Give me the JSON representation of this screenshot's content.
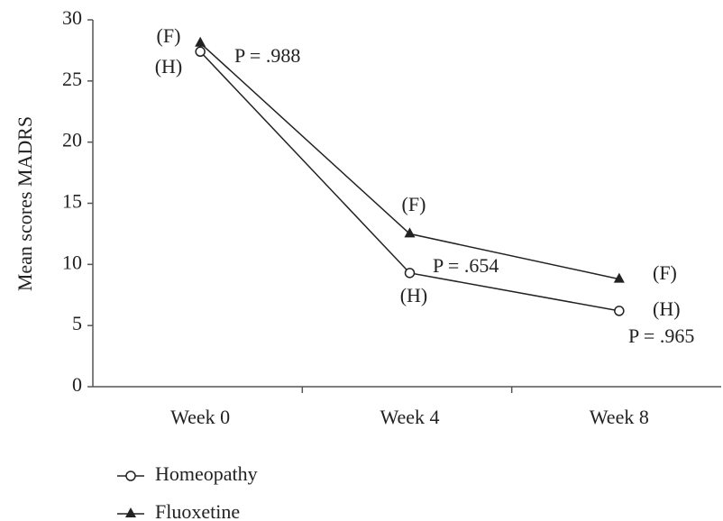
{
  "chart_data": {
    "type": "line",
    "y_label": "Mean scores MADRS",
    "categories": [
      "Week 0",
      "Week 4",
      "Week 8"
    ],
    "series": [
      {
        "name": "Homeopathy",
        "color": "#222222",
        "marker": "open-circle",
        "values": [
          27.4,
          9.3,
          6.2
        ]
      },
      {
        "name": "Fluoxetine",
        "color": "#222222",
        "marker": "filled-triangle",
        "values": [
          28.1,
          12.5,
          8.8
        ]
      }
    ],
    "ylim": [
      0,
      30
    ],
    "yticks": [
      0,
      5,
      10,
      15,
      20,
      25,
      30
    ],
    "annotations": [
      "(F)",
      "(H)",
      "P = .988",
      "(F)",
      "P = .654",
      "(H)",
      "(F)",
      "(H)",
      "P = .965"
    ],
    "grid": false,
    "legend": "bottom-left"
  }
}
